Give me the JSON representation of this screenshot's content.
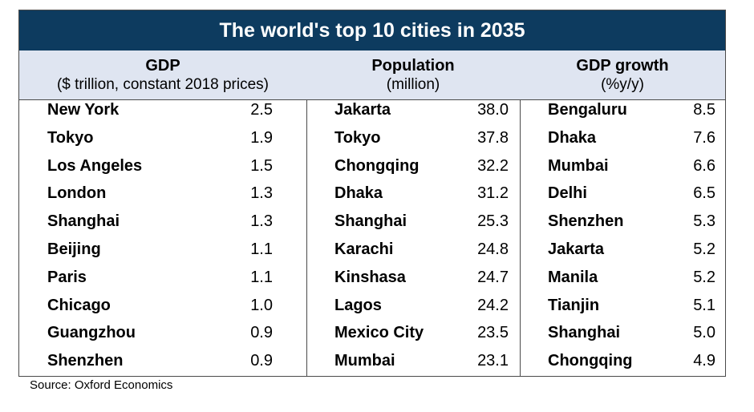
{
  "chart_data": {
    "type": "table",
    "title": "The world's top 10 cities in 2035",
    "source": "Source: Oxford Economics",
    "columns": [
      {
        "header": "GDP",
        "subheader": "($ trillion, constant 2018 prices)",
        "rows": [
          {
            "city": "New York",
            "value": "2.5"
          },
          {
            "city": "Tokyo",
            "value": "1.9"
          },
          {
            "city": "Los Angeles",
            "value": "1.5"
          },
          {
            "city": "London",
            "value": "1.3"
          },
          {
            "city": "Shanghai",
            "value": "1.3"
          },
          {
            "city": "Beijing",
            "value": "1.1"
          },
          {
            "city": "Paris",
            "value": "1.1"
          },
          {
            "city": "Chicago",
            "value": "1.0"
          },
          {
            "city": "Guangzhou",
            "value": "0.9"
          },
          {
            "city": "Shenzhen",
            "value": "0.9"
          }
        ]
      },
      {
        "header": "Population",
        "subheader": "(million)",
        "rows": [
          {
            "city": "Jakarta",
            "value": "38.0"
          },
          {
            "city": "Tokyo",
            "value": "37.8"
          },
          {
            "city": "Chongqing",
            "value": "32.2"
          },
          {
            "city": "Dhaka",
            "value": "31.2"
          },
          {
            "city": "Shanghai",
            "value": "25.3"
          },
          {
            "city": "Karachi",
            "value": "24.8"
          },
          {
            "city": "Kinshasa",
            "value": "24.7"
          },
          {
            "city": "Lagos",
            "value": "24.2"
          },
          {
            "city": "Mexico City",
            "value": "23.5"
          },
          {
            "city": "Mumbai",
            "value": "23.1"
          }
        ]
      },
      {
        "header": "GDP growth",
        "subheader": "(%y/y)",
        "rows": [
          {
            "city": "Bengaluru",
            "value": "8.5"
          },
          {
            "city": "Dhaka",
            "value": "7.6"
          },
          {
            "city": "Mumbai",
            "value": "6.6"
          },
          {
            "city": "Delhi",
            "value": "6.5"
          },
          {
            "city": "Shenzhen",
            "value": "5.3"
          },
          {
            "city": "Jakarta",
            "value": "5.2"
          },
          {
            "city": "Manila",
            "value": "5.2"
          },
          {
            "city": "Tianjin",
            "value": "5.1"
          },
          {
            "city": "Shanghai",
            "value": "5.0"
          },
          {
            "city": "Chongqing",
            "value": "4.9"
          }
        ]
      }
    ],
    "colors": {
      "title_bg": "#0d3b5f",
      "header_bg": "#dfe5f1",
      "title_text": "#ffffff"
    }
  }
}
